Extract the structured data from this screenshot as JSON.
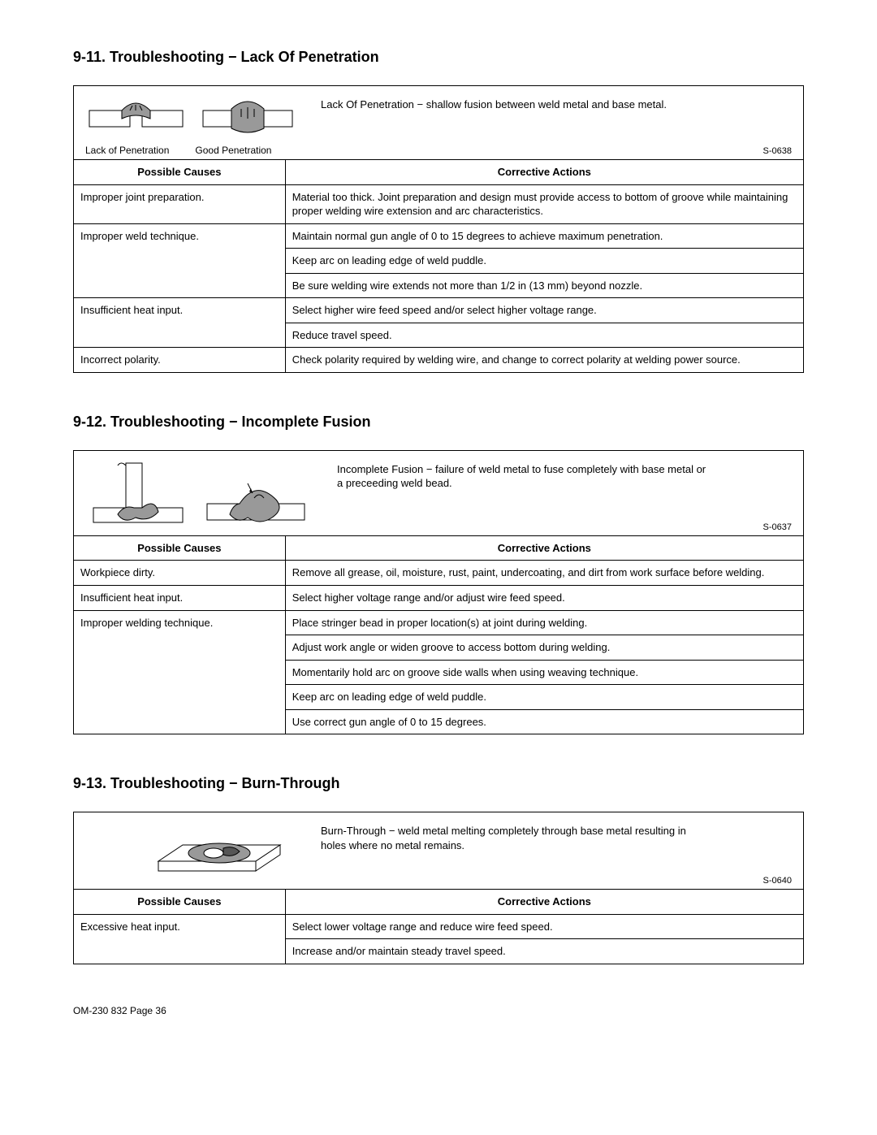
{
  "footer": "OM-230 832 Page 36",
  "columns": {
    "causes": "Possible Causes",
    "actions": "Corrective Actions"
  },
  "sections": [
    {
      "heading": "9-11.  Troubleshooting − Lack Of Penetration",
      "ref": "S-0638",
      "desc": "Lack Of Penetration − shallow fusion between weld metal and base metal.",
      "captions": [
        "Lack of Penetration",
        "Good Penetration"
      ],
      "rows": [
        {
          "cause": "Improper joint preparation.",
          "actions": [
            "Material too thick. Joint preparation and design must provide access to bottom of groove while maintaining proper welding wire extension and arc characteristics."
          ]
        },
        {
          "cause": "Improper weld technique.",
          "actions": [
            "Maintain normal gun angle of 0 to 15 degrees to achieve maximum penetration.",
            "Keep arc on leading edge of weld puddle.",
            "Be sure welding wire extends not more than 1/2 in (13 mm) beyond nozzle."
          ]
        },
        {
          "cause": "Insufficient heat input.",
          "actions": [
            "Select higher wire feed speed and/or select higher voltage range.",
            "Reduce travel speed."
          ]
        },
        {
          "cause": "Incorrect polarity.",
          "actions": [
            "Check polarity required by welding wire, and change to correct polarity at welding power source."
          ]
        }
      ]
    },
    {
      "heading": "9-12.  Troubleshooting − Incomplete Fusion",
      "ref": "S-0637",
      "desc": "Incomplete Fusion − failure of weld metal to fuse completely with base metal or a preceeding weld bead.",
      "rows": [
        {
          "cause": "Workpiece dirty.",
          "actions": [
            "Remove all grease, oil, moisture, rust, paint, undercoating, and dirt from work surface before welding."
          ]
        },
        {
          "cause": "Insufficient heat input.",
          "actions": [
            "Select higher voltage range and/or adjust wire feed speed."
          ]
        },
        {
          "cause": "Improper welding technique.",
          "actions": [
            "Place stringer bead in proper location(s) at joint during welding.",
            "Adjust work angle or widen groove to access bottom during welding.",
            "Momentarily hold arc on groove side walls when using weaving technique.",
            "Keep arc on leading edge of weld puddle.",
            "Use correct gun angle of 0 to 15 degrees."
          ]
        }
      ]
    },
    {
      "heading": "9-13.  Troubleshooting − Burn-Through",
      "ref": "S-0640",
      "desc": "Burn-Through − weld metal melting completely through base metal resulting in holes where no metal remains.",
      "rows": [
        {
          "cause": "Excessive heat input.",
          "actions": [
            "Select lower voltage range and reduce wire feed speed.",
            "Increase and/or maintain steady travel speed."
          ]
        }
      ]
    }
  ]
}
